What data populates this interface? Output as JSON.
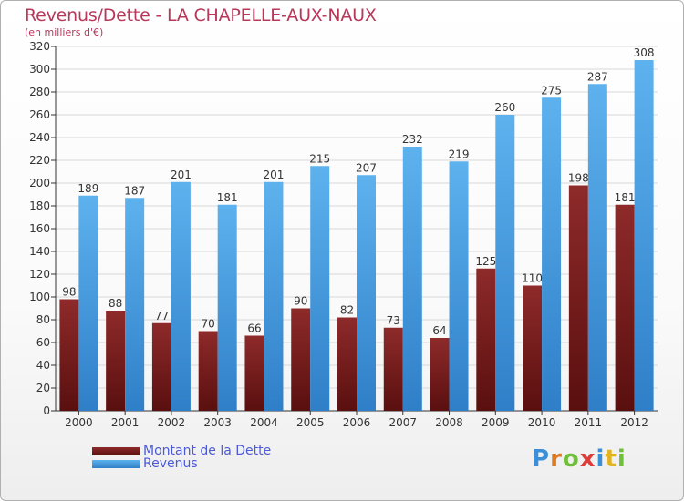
{
  "title": "Revenus/Dette - LA CHAPELLE-AUX-NAUX",
  "subtitle": "(en milliers d'€)",
  "colors": {
    "dette": "#7a1f1f",
    "revenus": "#4aa3e6",
    "title": "#b8385a",
    "legend_text": "#4a5ad8"
  },
  "logo": {
    "text": "Proxiti",
    "letters": [
      "P",
      "r",
      "o",
      "x",
      "i",
      "t",
      "i"
    ],
    "letter_colors": [
      "#3b8fd9",
      "#e07a1f",
      "#6fbf3a",
      "#e03a3a",
      "#3b8fd9",
      "#e0b31f",
      "#6fbf3a"
    ]
  },
  "chart_data": {
    "type": "bar",
    "title": "Revenus/Dette - LA CHAPELLE-AUX-NAUX",
    "subtitle": "(en milliers d'€)",
    "categories": [
      "2000",
      "2001",
      "2002",
      "2003",
      "2004",
      "2005",
      "2006",
      "2007",
      "2008",
      "2009",
      "2010",
      "2011",
      "2012"
    ],
    "series": [
      {
        "name": "Montant de la Dette",
        "values": [
          98,
          88,
          77,
          70,
          66,
          90,
          82,
          73,
          64,
          125,
          110,
          198,
          181
        ]
      },
      {
        "name": "Revenus",
        "values": [
          189,
          187,
          201,
          181,
          201,
          215,
          207,
          232,
          219,
          260,
          275,
          287,
          308
        ]
      }
    ],
    "ylim": [
      0,
      320
    ],
    "yticks": [
      0,
      20,
      40,
      60,
      80,
      100,
      120,
      140,
      160,
      180,
      200,
      220,
      240,
      260,
      280,
      300,
      320
    ],
    "grid": true,
    "legend": "bottom-left"
  }
}
